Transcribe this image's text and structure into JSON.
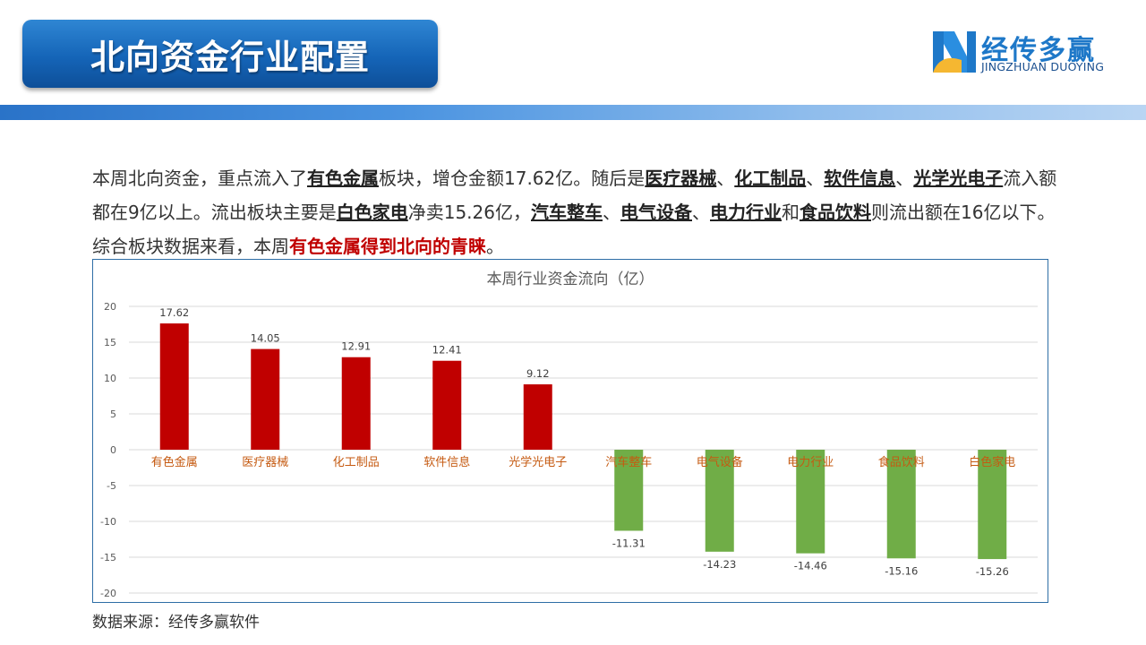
{
  "header": {
    "title": "北向资金行业配置",
    "logo_cn": "经传多赢",
    "logo_en": "JINGZHUAN DUOYING"
  },
  "summary": {
    "s1": "本周北向资金，重点流入了",
    "s2": "有色金属",
    "s3": "板块，增仓金额17.62亿。随后是",
    "s4": "医疗器械",
    "s5": "、",
    "s6": "化工制品",
    "s7": "、",
    "s8": "软件信息",
    "s9": "、",
    "s10": "光学光电子",
    "s11": "流入额都在9亿以上。流出板块主要是",
    "s12": "白色家电",
    "s13": "净卖15.26亿，",
    "s14": "汽车整车",
    "s15": "、",
    "s16": "电气设备",
    "s17": "、",
    "s18": "电力行业",
    "s19": "和",
    "s20": "食品饮料",
    "s21": "则流出额在16亿以下。综合板块数据来看，本周",
    "s22": "有色金属得到北向的青睐",
    "s23": "。"
  },
  "source": "数据来源：经传多赢软件",
  "colors": {
    "positive": "#c00000",
    "negative": "#70ad47",
    "label_positive": "#c55a11",
    "label_negative": "#c55a11"
  },
  "chart_data": {
    "type": "bar",
    "title": "本周行业资金流向（亿）",
    "categories": [
      "有色金属",
      "医疗器械",
      "化工制品",
      "软件信息",
      "光学光电子",
      "汽车整车",
      "电气设备",
      "电力行业",
      "食品饮料",
      "白色家电"
    ],
    "values": [
      17.62,
      14.05,
      12.91,
      12.41,
      9.12,
      -11.31,
      -14.23,
      -14.46,
      -15.16,
      -15.26
    ],
    "value_labels": [
      "17.62",
      "14.05",
      "12.91",
      "12.41",
      "9.12",
      "-11.31",
      "-14.23",
      "-14.46",
      "-15.16",
      "-15.26"
    ],
    "ylim": [
      -20,
      20
    ],
    "yticks": [
      20,
      15,
      10,
      5,
      0,
      -5,
      -10,
      -15,
      -20
    ],
    "grid": true,
    "legend": "none"
  }
}
